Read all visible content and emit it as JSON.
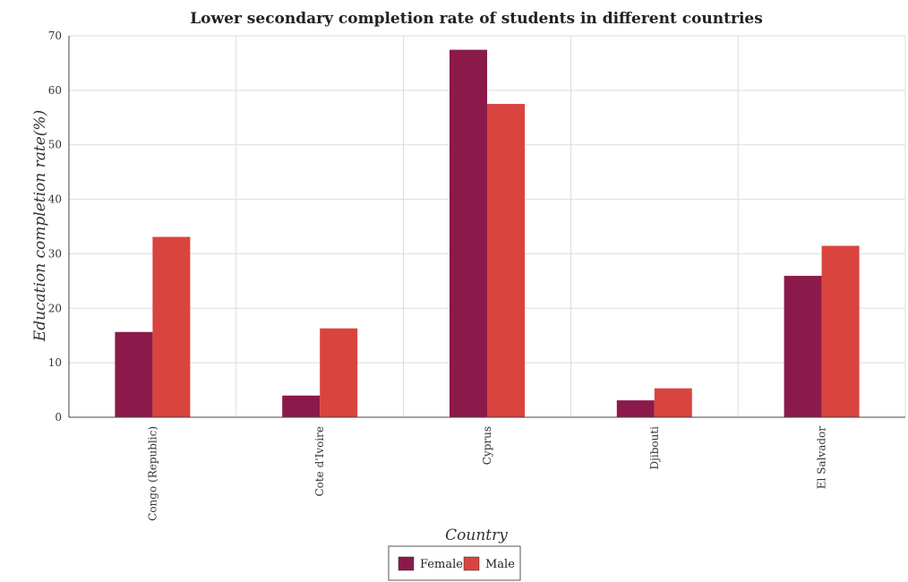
{
  "chart_data": {
    "type": "bar",
    "title": "Lower secondary completion rate of students in different countries",
    "xlabel": "Country",
    "ylabel": "Education completion rate(%)",
    "categories": [
      "Congo (Republic)",
      "Cote d'Ivoire",
      "Cyprus",
      "Djibouti",
      "El Salvador"
    ],
    "series": [
      {
        "name": "Female",
        "color": "#8B1A4A",
        "values": [
          15.65,
          3.98,
          67.44,
          3.1,
          25.95
        ]
      },
      {
        "name": "Male",
        "color": "#D9443F",
        "values": [
          33.1,
          16.31,
          57.5,
          5.31,
          31.46
        ]
      }
    ],
    "ylim": [
      0,
      70
    ],
    "yticks": [
      0,
      10,
      20,
      30,
      40,
      50,
      60,
      70
    ],
    "grid": true,
    "legend_position": "bottom-center"
  }
}
